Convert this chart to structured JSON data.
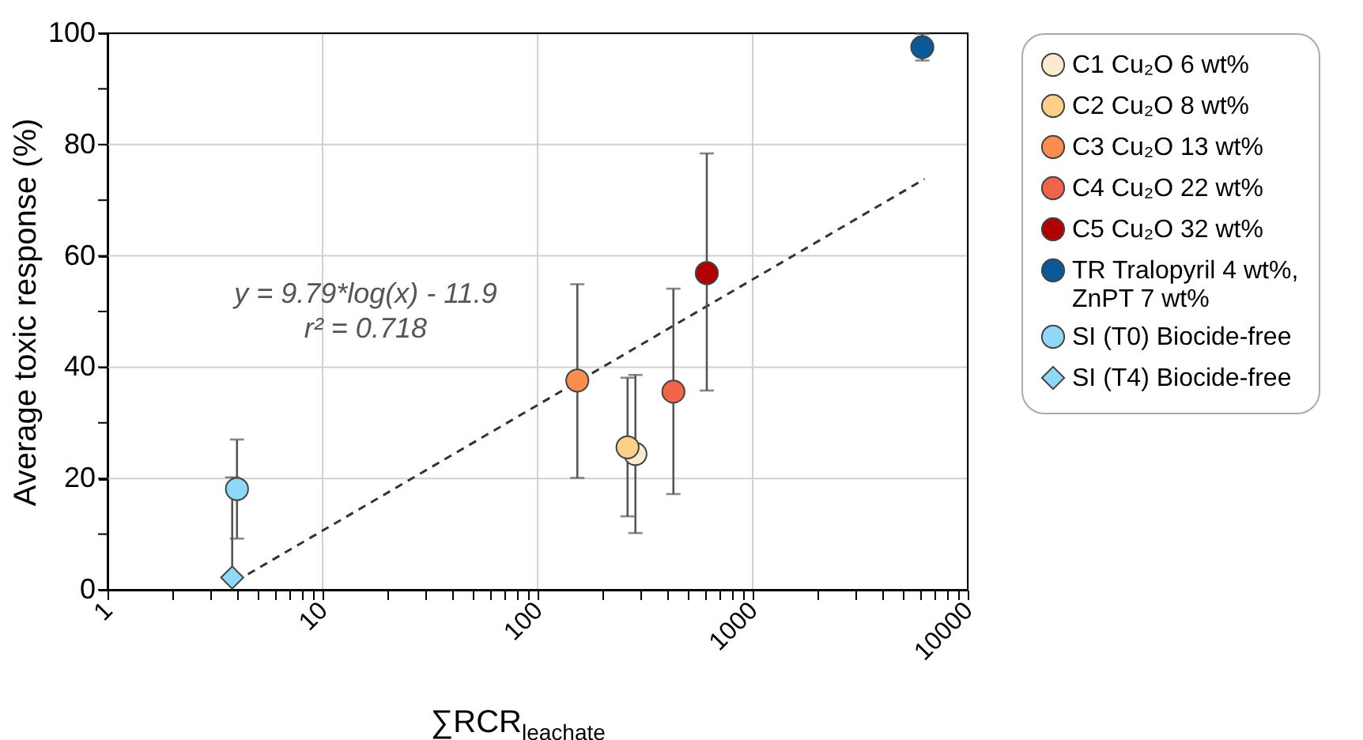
{
  "chart_data": {
    "type": "scatter",
    "xlabel": "∑RCR$_{leachate}$",
    "ylabel": "Average toxic response (%)",
    "log": "x",
    "grid": true,
    "legend": "right",
    "xlim": [
      1,
      10000
    ],
    "ylim": [
      0,
      100
    ],
    "xticks": [
      1,
      {
        "value": 2,
        "label": null
      },
      {
        "value": 3,
        "label": null
      },
      {
        "value": 4,
        "label": null
      },
      {
        "value": 5,
        "label": null
      },
      {
        "value": 6,
        "label": null
      },
      {
        "value": 7,
        "label": null
      },
      {
        "value": 8,
        "label": null
      },
      {
        "value": 9,
        "label": null
      },
      10,
      {
        "value": 20,
        "label": null
      },
      {
        "value": 30,
        "label": null
      },
      {
        "value": 40,
        "label": null
      },
      {
        "value": 50,
        "label": null
      },
      {
        "value": 60,
        "label": null
      },
      {
        "value": 70,
        "label": null
      },
      {
        "value": 80,
        "label": null
      },
      {
        "value": 90,
        "label": null
      },
      100,
      {
        "value": 200,
        "label": null
      },
      {
        "value": 300,
        "label": null
      },
      {
        "value": 400,
        "label": null
      },
      {
        "value": 500,
        "label": null
      },
      {
        "value": 600,
        "label": null
      },
      {
        "value": 700,
        "label": null
      },
      {
        "value": 800,
        "label": null
      },
      {
        "value": 900,
        "label": null
      },
      1000,
      {
        "value": 2000,
        "label": null
      },
      {
        "value": 3000,
        "label": null
      },
      {
        "value": 4000,
        "label": null
      },
      {
        "value": 5000,
        "label": null
      },
      {
        "value": 6000,
        "label": null
      },
      {
        "value": 7000,
        "label": null
      },
      {
        "value": 8000,
        "label": null
      },
      {
        "value": 9000,
        "label": null
      },
      10000
    ],
    "yticks": [
      0,
      {
        "value": 10,
        "label": null
      },
      20,
      {
        "value": 30,
        "label": null
      },
      40,
      {
        "value": 50,
        "label": null
      },
      60,
      {
        "value": 70,
        "label": null
      },
      80,
      {
        "value": 90,
        "label": null
      },
      100
    ],
    "series": [
      {
        "name": "C1 Cu₂O 6 wt%",
        "color": "#fdebd0",
        "marker": "circle",
        "x": [
          285
        ],
        "values": [
          24.4
        ],
        "errors": [
          [
            10.2,
            38.6
          ]
        ]
      },
      {
        "name": "C2 Cu₂O 8 wt%",
        "color": "#fdd08a",
        "marker": "circle",
        "x": [
          262
        ],
        "values": [
          25.6
        ],
        "errors": [
          [
            13.2,
            38.1
          ]
        ]
      },
      {
        "name": "C3 Cu₂O 13 wt%",
        "color": "#fc8d4f",
        "marker": "circle",
        "x": [
          153
        ],
        "values": [
          37.6
        ],
        "errors": [
          [
            20.1,
            54.9
          ]
        ]
      },
      {
        "name": "C4 Cu₂O 22 wt%",
        "color": "#f06449",
        "marker": "circle",
        "x": [
          428
        ],
        "values": [
          35.6
        ],
        "errors": [
          [
            17.2,
            54.1
          ]
        ]
      },
      {
        "name": "C5 Cu₂O 32 wt%",
        "color": "#b00000",
        "marker": "circle",
        "x": [
          612
        ],
        "values": [
          56.9
        ],
        "errors": [
          [
            35.8,
            78.4
          ]
        ]
      },
      {
        "name": "TR Tralopyril 4 wt%,\nZnPT 7 wt%",
        "color": "#0a5a99",
        "marker": "circle",
        "x": [
          6150
        ],
        "values": [
          97.5
        ],
        "errors": [
          [
            95.1,
            99.9
          ]
        ]
      },
      {
        "name": "SI (T0) Biocide-free",
        "color": "#8fd8f7",
        "marker": "circle",
        "x": [
          4.0
        ],
        "values": [
          18.1
        ],
        "errors": [
          [
            9.2,
            27.0
          ]
        ]
      },
      {
        "name": "SI (T4) Biocide-free",
        "color": "#8fd8f7",
        "marker": "diamond",
        "x": [
          3.8
        ],
        "values": [
          2.2
        ],
        "errors": [
          [
            2.2,
            20.2
          ]
        ]
      },
      {
        "type": "line",
        "color": "#333333",
        "line_style": "dashed",
        "x": [
          4.5,
          6300
        ],
        "values": [
          2.8,
          73.8
        ]
      }
    ],
    "annotations": [
      "y = 9.79*log(x) - 11.9",
      "r² = 0.718"
    ]
  }
}
